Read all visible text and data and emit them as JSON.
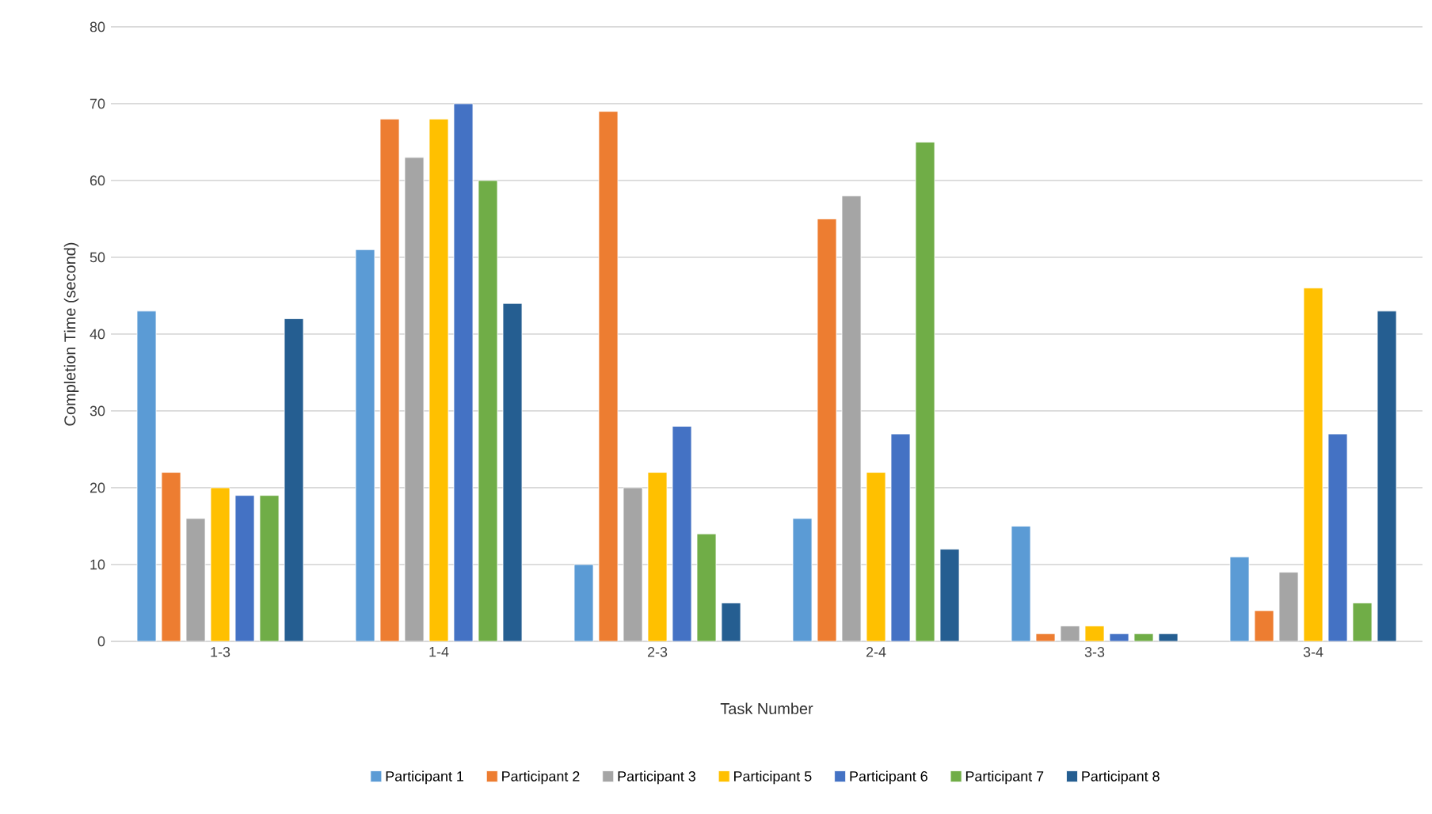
{
  "chart_data": {
    "type": "bar",
    "xlabel": "Task Number",
    "ylabel": "Completion Time (second)",
    "categories": [
      "1-3",
      "1-4",
      "2-3",
      "2-4",
      "3-3",
      "3-4"
    ],
    "series": [
      {
        "name": "Participant 1",
        "color": "#5b9bd5",
        "values": [
          43,
          51,
          10,
          16,
          15,
          11
        ]
      },
      {
        "name": "Participant 2",
        "color": "#ed7d31",
        "values": [
          22,
          68,
          69,
          55,
          1,
          4
        ]
      },
      {
        "name": "Participant 3",
        "color": "#a5a5a5",
        "values": [
          16,
          63,
          20,
          58,
          2,
          9
        ]
      },
      {
        "name": "Participant 5",
        "color": "#ffc000",
        "values": [
          20,
          68,
          22,
          22,
          2,
          46
        ]
      },
      {
        "name": "Participant 6",
        "color": "#4472c4",
        "values": [
          19,
          70,
          28,
          27,
          1,
          27
        ]
      },
      {
        "name": "Participant 7",
        "color": "#70ad47",
        "values": [
          19,
          60,
          14,
          65,
          1,
          5
        ]
      },
      {
        "name": "Participant 8",
        "color": "#255e91",
        "values": [
          42,
          44,
          5,
          12,
          1,
          43
        ]
      }
    ],
    "ylim": [
      0,
      80
    ],
    "yticks": [
      0,
      10,
      20,
      30,
      40,
      50,
      60,
      70,
      80
    ],
    "grid": "y",
    "legend": "bottom"
  }
}
